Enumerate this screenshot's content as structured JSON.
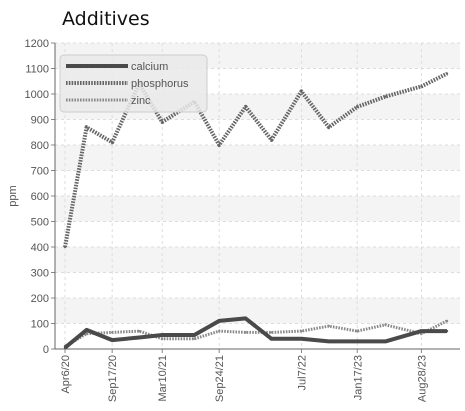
{
  "chart_data": {
    "type": "line",
    "title": "Additives",
    "xlabel": "",
    "ylabel": "ppm",
    "ylim": [
      0,
      1200
    ],
    "yticks": [
      0,
      100,
      200,
      300,
      400,
      500,
      600,
      700,
      800,
      900,
      1000,
      1100,
      1200
    ],
    "x_tick_labels": [
      "Apr6/20",
      "Sep17/20",
      "Mar10/21",
      "Sep24/21",
      "Jul7/22",
      "Jan17/23",
      "Aug28/23"
    ],
    "grid": true,
    "legend": "top-left",
    "series": [
      {
        "name": "calcium",
        "color": "#4a4a4a",
        "style": "solid",
        "x": [
          "2020-04-06",
          "2020-06-20",
          "2020-09-17",
          "2020-12-20",
          "2021-03-10",
          "2021-06-30",
          "2021-09-24",
          "2021-12-25",
          "2022-03-25",
          "2022-07-07",
          "2022-10-10",
          "2023-01-17",
          "2023-04-25",
          "2023-08-28",
          "2023-11-25"
        ],
        "values": [
          5,
          75,
          35,
          45,
          55,
          55,
          110,
          120,
          40,
          40,
          30,
          30,
          30,
          70,
          70
        ]
      },
      {
        "name": "phosphorus",
        "color": "#666666",
        "style": "dotted",
        "x": [
          "2020-04-06",
          "2020-06-20",
          "2020-09-17",
          "2020-12-20",
          "2021-03-10",
          "2021-06-30",
          "2021-09-24",
          "2021-12-25",
          "2022-03-25",
          "2022-07-07",
          "2022-10-10",
          "2023-01-17",
          "2023-04-25",
          "2023-08-28",
          "2023-11-25"
        ],
        "values": [
          400,
          870,
          810,
          1040,
          890,
          970,
          800,
          950,
          820,
          1010,
          870,
          950,
          990,
          1030,
          1080
        ]
      },
      {
        "name": "zinc",
        "color": "#8a8a8a",
        "style": "dotted",
        "x": [
          "2020-04-06",
          "2020-06-20",
          "2020-09-17",
          "2020-12-20",
          "2021-03-10",
          "2021-06-30",
          "2021-09-24",
          "2021-12-25",
          "2022-03-25",
          "2022-07-07",
          "2022-10-10",
          "2023-01-17",
          "2023-04-25",
          "2023-08-28",
          "2023-11-25"
        ],
        "values": [
          10,
          60,
          65,
          70,
          40,
          40,
          70,
          65,
          65,
          70,
          90,
          70,
          95,
          60,
          110
        ]
      }
    ]
  }
}
